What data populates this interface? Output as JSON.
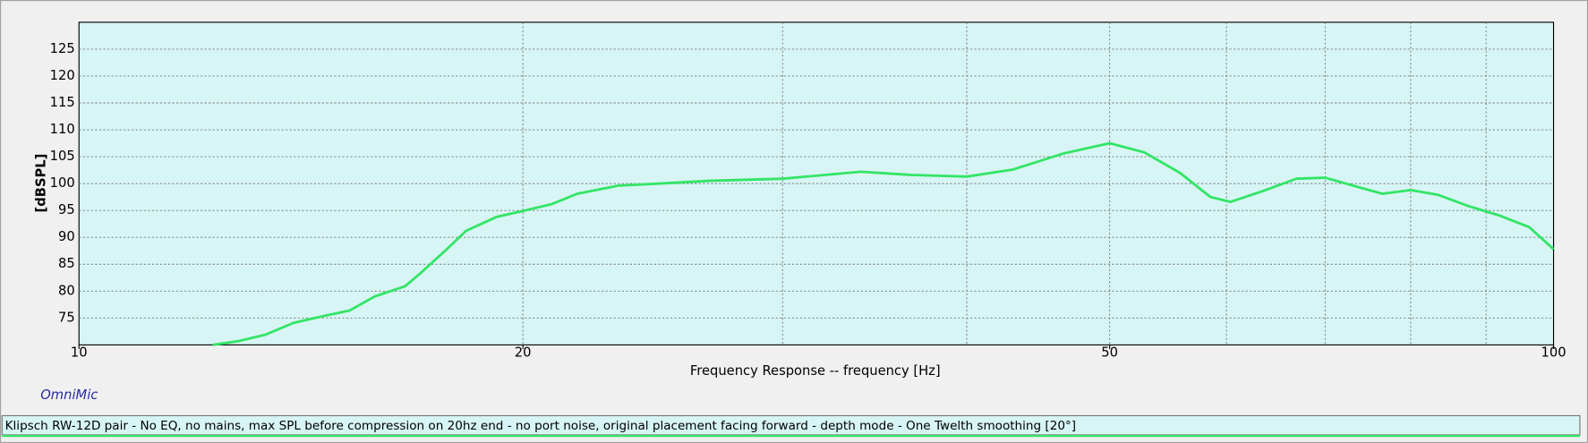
{
  "chart_data": {
    "type": "line",
    "xlabel": "Frequency Response -- frequency [Hz]",
    "ylabel": "[dBSPL]",
    "brand": "OmniMic",
    "legend_text": "Klipsch RW-12D pair - No EQ, no mains, max SPL before compression on 20hz end - no port noise, original placement facing forward - depth mode - One Twelth smoothing [20°]",
    "xscale": "log",
    "xlim": [
      10,
      100
    ],
    "xticks": [
      10,
      20,
      50,
      100
    ],
    "xgrid": [
      20,
      30,
      40,
      50,
      60,
      70,
      80,
      90
    ],
    "ylim": [
      70,
      130
    ],
    "yticks": [
      75,
      80,
      85,
      90,
      95,
      100,
      105,
      110,
      115,
      120,
      125
    ],
    "grid": true,
    "x": [
      12.32,
      12.82,
      13.38,
      13.98,
      14.66,
      15.26,
      15.87,
      16.64,
      17.04,
      17.73,
      18.3,
      19.19,
      20,
      20.93,
      21.77,
      23.2,
      25.1,
      26.74,
      30,
      33.9,
      36.7,
      40,
      42.98,
      46.52,
      50,
      52.79,
      55.8,
      58.52,
      60.39,
      63.8,
      66.92,
      70,
      73.6,
      76.55,
      80,
      83.52,
      87.57,
      91.82,
      96.27,
      100
    ],
    "series": [
      {
        "color": "#33e566",
        "values": [
          70,
          70.7,
          71.9,
          74.1,
          75.4,
          76.4,
          79,
          80.9,
          83.3,
          87.6,
          91.2,
          93.8,
          94.9,
          96.2,
          98.1,
          99.6,
          100.1,
          100.5,
          100.9,
          102.2,
          101.6,
          101.3,
          102.6,
          105.6,
          107.5,
          105.8,
          102,
          97.5,
          96.6,
          98.8,
          100.9,
          101.1,
          99.4,
          98.1,
          98.8,
          97.9,
          95.8,
          94.1,
          91.9,
          87.8
        ]
      }
    ]
  }
}
